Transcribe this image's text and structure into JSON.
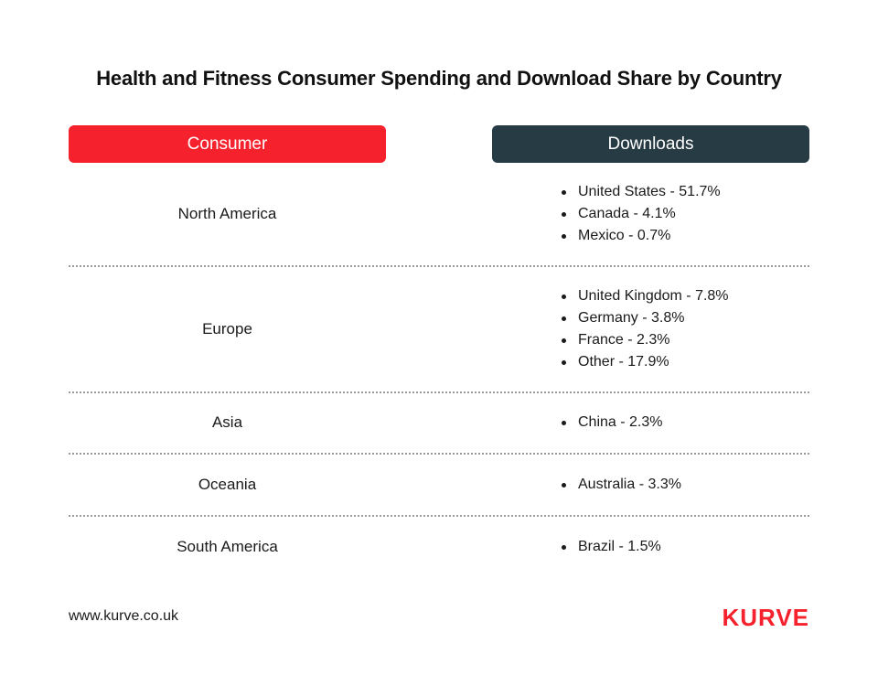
{
  "title": "Health and Fitness Consumer Spending and Download Share by Country",
  "headers": {
    "consumer": "Consumer",
    "downloads": "Downloads"
  },
  "colors": {
    "consumer_header": "#f5222d",
    "downloads_header": "#273b44",
    "brand": "#f5222d"
  },
  "rows": [
    {
      "region": "North America",
      "downloads": [
        "United States - 51.7%",
        "Canada - 4.1%",
        "Mexico - 0.7%"
      ]
    },
    {
      "region": "Europe",
      "downloads": [
        "United Kingdom - 7.8%",
        "Germany - 3.8%",
        "France - 2.3%",
        "Other - 17.9%"
      ]
    },
    {
      "region": "Asia",
      "downloads": [
        "China - 2.3%"
      ]
    },
    {
      "region": "Oceania",
      "downloads": [
        "Australia - 3.3%"
      ]
    },
    {
      "region": "South America",
      "downloads": [
        "Brazil - 1.5%"
      ]
    }
  ],
  "footer": {
    "url": "www.kurve.co.uk",
    "logo": "KURVE"
  }
}
